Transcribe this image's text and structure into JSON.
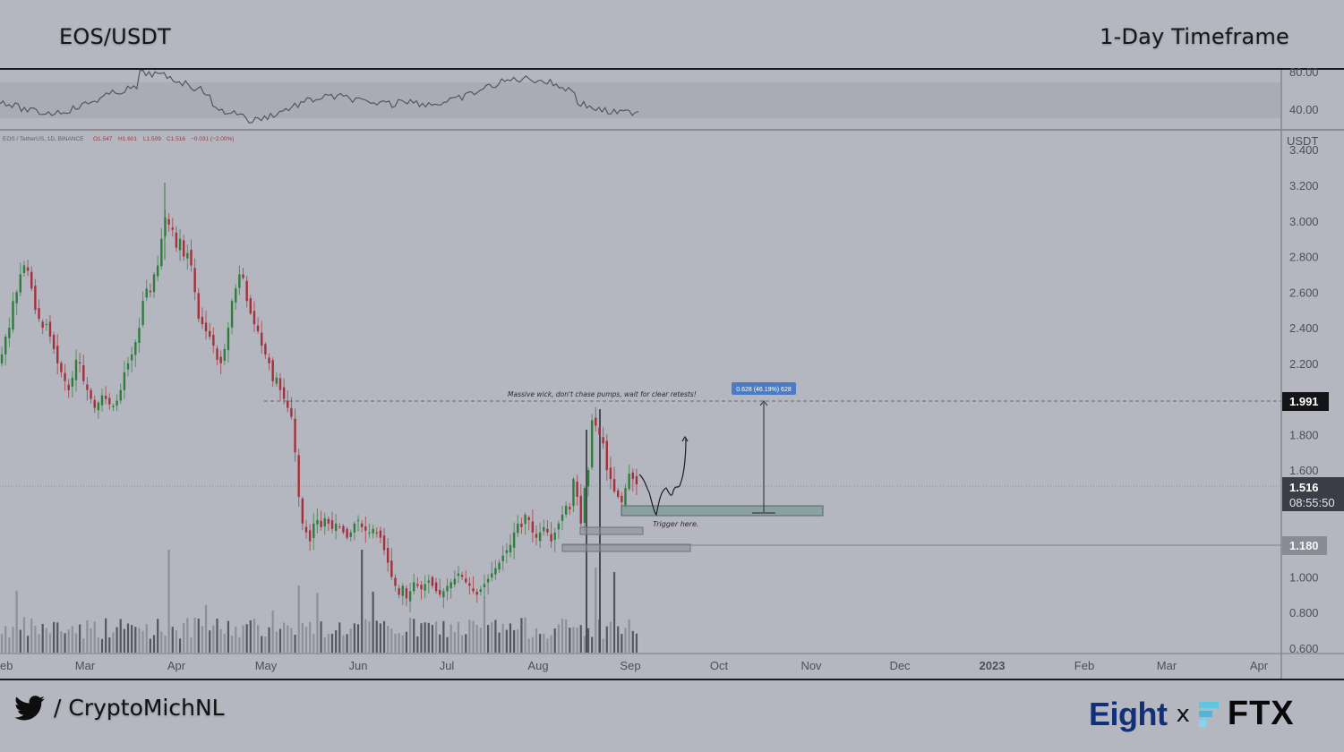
{
  "header": {
    "pair": "EOS/USDT",
    "timeframe": "1-Day Timeframe"
  },
  "legend": {
    "symbol": "EOS / TetherUS, 1D, BINANCE",
    "open": "O1.547",
    "high": "H1.601",
    "low": "L1.509",
    "close": "C1.516",
    "change": "−0.031 (−2.00%)"
  },
  "rsi_axis": {
    "upper": "80.00",
    "lower": "40.00"
  },
  "price_axis": {
    "unit": "USDT",
    "ticks": [
      "3.400",
      "3.200",
      "3.000",
      "2.800",
      "2.600",
      "2.400",
      "2.200",
      "1.800",
      "1.600",
      "1.000",
      "0.800",
      "0.600"
    ],
    "badges": {
      "resistance": "1.991",
      "current": "1.516",
      "countdown": "08:55:50",
      "support": "1.180"
    }
  },
  "time_axis": {
    "labels": [
      "eb",
      "Mar",
      "Apr",
      "May",
      "Jun",
      "Jul",
      "Aug",
      "Sep",
      "Oct",
      "Nov",
      "Dec",
      "2023",
      "Feb",
      "Mar",
      "Apr"
    ]
  },
  "annotations": {
    "wick_note": "Massive wick, don't chase pumps, wait for clear retests!",
    "trigger_note": "Trigger here.",
    "measure_label": "0.628 (46.19%) 628"
  },
  "footer": {
    "twitter_handle": "/ CryptoMichNL",
    "sponsor_left": "Eight",
    "sponsor_sep": "x",
    "sponsor_right": "FTX"
  },
  "colors": {
    "background": "#b4b6c0",
    "bull": "#2f7d3a",
    "bear": "#a3313a",
    "measure_badge": "#4a7bc4",
    "zone_fill": "#7f9a98"
  },
  "chart_data": {
    "type": "candlestick",
    "title": "EOS/USDT",
    "subtitle": "1-Day Timeframe",
    "xlabel": "",
    "ylabel": "USDT",
    "ylim": [
      0.6,
      3.4
    ],
    "exchange": "BINANCE",
    "last": {
      "open": 1.547,
      "high": 1.601,
      "low": 1.509,
      "close": 1.516,
      "change": -0.031,
      "change_pct": -2.0
    },
    "levels": {
      "resistance": 1.991,
      "current": 1.516,
      "support": 1.18
    },
    "measure": {
      "from": 1.36,
      "to": 1.991,
      "delta": 0.628,
      "pct": 46.19
    },
    "demand_zone": [
      1.37,
      1.43
    ],
    "rsi_band": [
      40,
      80
    ],
    "monthly_closes": [
      {
        "x": "Feb",
        "close": 2.3
      },
      {
        "x": "Mar",
        "close": 2.05
      },
      {
        "x": "Apr",
        "close": 2.85
      },
      {
        "x": "May",
        "close": 2.15
      },
      {
        "x": "Jun",
        "close": 1.25
      },
      {
        "x": "Jul",
        "close": 0.95
      },
      {
        "x": "Aug",
        "close": 1.25
      },
      {
        "x": "Sep",
        "close": 1.52
      }
    ],
    "closes": [
      2.25,
      2.35,
      2.4,
      2.55,
      2.6,
      2.7,
      2.75,
      2.72,
      2.62,
      2.5,
      2.45,
      2.4,
      2.42,
      2.35,
      2.28,
      2.2,
      2.15,
      2.1,
      2.05,
      2.12,
      2.22,
      2.2,
      2.1,
      2.05,
      2.0,
      1.95,
      1.98,
      2.02,
      2.0,
      1.97,
      1.96,
      1.99,
      2.05,
      2.15,
      2.2,
      2.25,
      2.32,
      2.4,
      2.55,
      2.62,
      2.6,
      2.7,
      2.75,
      2.9,
      3.02,
      2.98,
      2.95,
      2.85,
      2.9,
      2.8,
      2.82,
      2.75,
      2.6,
      2.45,
      2.42,
      2.38,
      2.35,
      2.3,
      2.22,
      2.2,
      2.28,
      2.4,
      2.55,
      2.62,
      2.7,
      2.68,
      2.55,
      2.48,
      2.42,
      2.38,
      2.3,
      2.25,
      2.2,
      2.1,
      2.12,
      2.05,
      2.0,
      1.95,
      1.9,
      1.7,
      1.45,
      1.3,
      1.25,
      1.2,
      1.3,
      1.32,
      1.28,
      1.33,
      1.3,
      1.27,
      1.3,
      1.28,
      1.25,
      1.22,
      1.25,
      1.3,
      1.32,
      1.28,
      1.26,
      1.25,
      1.27,
      1.25,
      1.22,
      1.15,
      1.08,
      1.0,
      0.95,
      0.9,
      0.95,
      0.88,
      0.92,
      0.97,
      0.95,
      0.93,
      0.96,
      0.98,
      0.95,
      0.92,
      0.9,
      0.92,
      0.95,
      0.97,
      0.99,
      1.02,
      1.0,
      0.97,
      0.95,
      0.92,
      0.9,
      0.93,
      0.96,
      0.99,
      1.02,
      1.05,
      1.08,
      1.12,
      1.15,
      1.18,
      1.25,
      1.3,
      1.28,
      1.35,
      1.32,
      1.25,
      1.22,
      1.25,
      1.28,
      1.25,
      1.2,
      1.25,
      1.3,
      1.35,
      1.4,
      1.38,
      1.55,
      1.45,
      1.3,
      1.5,
      1.6,
      1.88,
      1.85,
      1.8,
      1.75,
      1.6,
      1.55,
      1.48,
      1.45,
      1.42,
      1.5,
      1.58,
      1.55,
      1.52
    ],
    "volume_relative": "spikes near May 10, Jun 13, Aug 19-23"
  }
}
